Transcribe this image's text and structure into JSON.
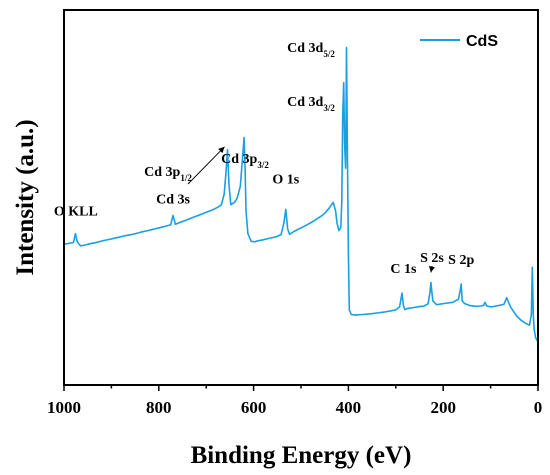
{
  "chart_data": {
    "type": "line",
    "xlabel": "Binding Energy (eV)",
    "ylabel": "Intensity (a.u.)",
    "xlim": [
      1000,
      0
    ],
    "x_reversed": true,
    "ylim": [
      0,
      100
    ],
    "y_tick_labels_shown": false,
    "x_ticks": [
      1000,
      800,
      600,
      400,
      200,
      0
    ],
    "x_tick_labels": [
      "1000",
      "800",
      "600",
      "400",
      "200",
      "0"
    ],
    "line_color": "#1a9fe0",
    "legend": {
      "position": "top-right",
      "entries": [
        "CdS"
      ]
    },
    "series": [
      {
        "name": "CdS",
        "x": [
          1000,
          990,
          980,
          976,
          972,
          965,
          955,
          945,
          935,
          925,
          915,
          905,
          895,
          885,
          875,
          865,
          855,
          845,
          835,
          825,
          815,
          805,
          795,
          785,
          775,
          770,
          765,
          755,
          745,
          735,
          725,
          715,
          705,
          695,
          685,
          675,
          668,
          662,
          658,
          655,
          652,
          648,
          640,
          635,
          628,
          624,
          620,
          618,
          616,
          612,
          605,
          598,
          590,
          580,
          570,
          560,
          550,
          542,
          536,
          532,
          528,
          524,
          515,
          505,
          495,
          485,
          475,
          465,
          455,
          448,
          440,
          432,
          427,
          424,
          420,
          416,
          414,
          412,
          410,
          408,
          406,
          405,
          404,
          402,
          400,
          398,
          394,
          385,
          370,
          355,
          340,
          325,
          310,
          300,
          292,
          287,
          284,
          281,
          275,
          262,
          250,
          240,
          232,
          228,
          226,
          222,
          214,
          198,
          180,
          168,
          164,
          162,
          160,
          155,
          145,
          132,
          120,
          115,
          112,
          108,
          98,
          85,
          72,
          66,
          58,
          45,
          35,
          25,
          18,
          14,
          12,
          10,
          8,
          5,
          2,
          0
        ],
        "values": [
          33.0,
          33.3,
          33.6,
          36.5,
          33.8,
          32.5,
          32.8,
          33.2,
          33.5,
          33.9,
          34.3,
          34.6,
          35.0,
          35.3,
          35.7,
          36.0,
          36.3,
          36.7,
          37.1,
          37.4,
          37.8,
          38.2,
          38.6,
          39.0,
          39.4,
          42.5,
          39.6,
          40.2,
          40.8,
          41.4,
          42.0,
          42.6,
          43.2,
          43.8,
          44.4,
          45.2,
          46.0,
          49.5,
          57.0,
          64.0,
          52.5,
          46.0,
          46.8,
          48.0,
          52.0,
          60.0,
          68.0,
          58.0,
          44.0,
          36.5,
          34.0,
          33.8,
          34.2,
          34.5,
          34.9,
          35.2,
          35.6,
          36.2,
          40.0,
          44.5,
          38.0,
          36.3,
          37.2,
          38.0,
          38.8,
          39.6,
          40.5,
          41.5,
          42.5,
          43.5,
          45.0,
          46.8,
          44.0,
          40.0,
          37.5,
          38.5,
          47.0,
          75.0,
          86.0,
          66.0,
          58.0,
          72.0,
          97.5,
          60.0,
          30.0,
          11.5,
          10.0,
          9.8,
          10.0,
          10.2,
          10.5,
          10.8,
          11.2,
          11.5,
          12.5,
          17.0,
          13.0,
          11.6,
          12.0,
          12.3,
          12.6,
          12.8,
          13.5,
          17.0,
          20.5,
          14.5,
          13.2,
          13.6,
          14.0,
          15.0,
          18.0,
          20.0,
          14.5,
          13.6,
          13.0,
          12.7,
          12.8,
          13.0,
          14.0,
          12.8,
          12.5,
          12.9,
          13.3,
          15.5,
          12.5,
          9.5,
          8.0,
          7.0,
          6.5,
          10.0,
          25.5,
          10.0,
          5.0,
          2.5,
          1.5,
          1.0
        ]
      }
    ],
    "annotations": [
      {
        "label": "O KLL",
        "x": 975,
        "y": 36.5
      },
      {
        "label": "Cd 3s",
        "x": 770,
        "y": 42.5
      },
      {
        "label": "Cd 3p",
        "sub": "1/2",
        "x": 655,
        "y": 64.0,
        "arrow": true
      },
      {
        "label": "Cd 3p",
        "sub": "3/2",
        "x": 618,
        "y": 68.0
      },
      {
        "label": "O 1s",
        "x": 532,
        "y": 44.5
      },
      {
        "label": "Cd 3d",
        "sub": "3/2",
        "x": 412,
        "y": 86.0
      },
      {
        "label": "Cd 3d",
        "sub": "5/2",
        "x": 405,
        "y": 97.5
      },
      {
        "label": "C 1s",
        "x": 284,
        "y": 17.0
      },
      {
        "label": "S 2s",
        "x": 226,
        "y": 20.5,
        "arrow": true
      },
      {
        "label": "S 2p",
        "x": 162,
        "y": 20.0
      }
    ]
  }
}
